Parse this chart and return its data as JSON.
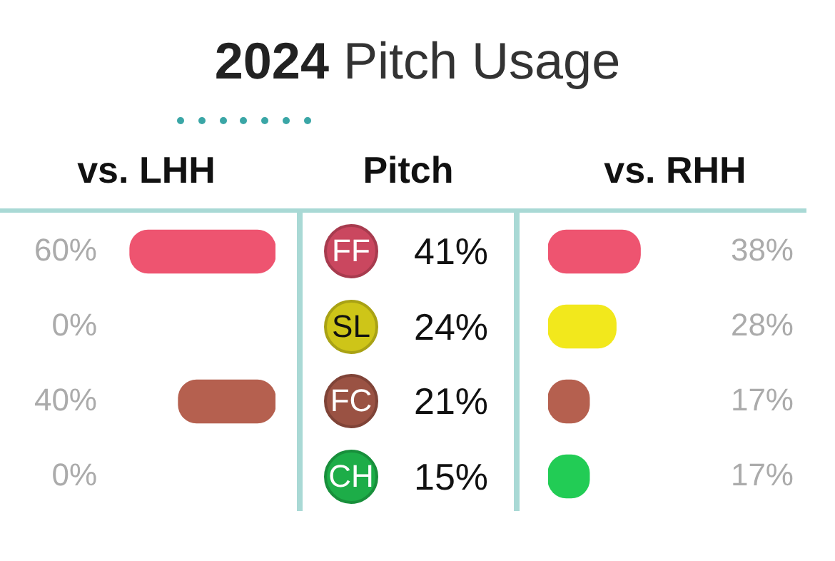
{
  "chart_data": [
    {
      "type": "bar",
      "orientation": "horizontal",
      "title": "vs. LHH",
      "ylabel": "Pitch",
      "categories": [
        "FF",
        "SL",
        "FC",
        "CH"
      ],
      "series": [
        {
          "values": [
            60,
            0,
            40,
            0
          ],
          "colors": [
            "#ee5470",
            "#f2e81c",
            "#b5604f",
            "#22cc55"
          ],
          "value_labels": [
            "60%",
            "0%",
            "40%",
            "0%"
          ]
        }
      ],
      "tick_labels": "y",
      "legend": false
    },
    {
      "type": "other",
      "title": "2024 Pitch Usage",
      "annotations": [
        "41%",
        "24%",
        "21%",
        "15%"
      ]
    },
    {
      "type": "bar",
      "orientation": "horizontal",
      "title": "vs. RHH",
      "categories": [
        null,
        null,
        null,
        null
      ],
      "series": [
        {
          "values": [
            38,
            28,
            17,
            17
          ],
          "colors": [
            "#ee5470",
            "#f2e81c",
            "#b5604f",
            "#22cc55"
          ],
          "value_labels": [
            "38%",
            "28%",
            "17%",
            "17%"
          ]
        }
      ],
      "tick_labels": false,
      "legend": false
    }
  ]
}
